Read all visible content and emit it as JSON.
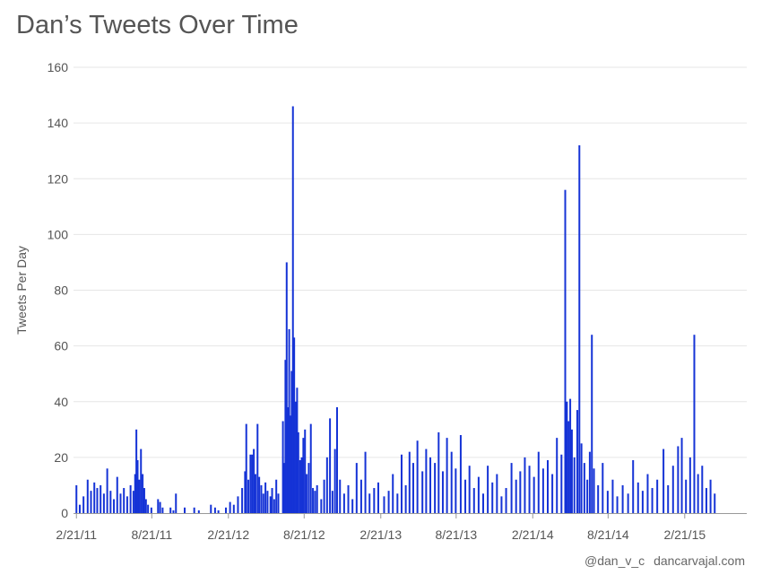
{
  "title": "Dan’s Tweets Over Time",
  "credit": {
    "handle": "@dan_v_c",
    "site": "dancarvajal.com"
  },
  "colors": {
    "bar": "#1533d6",
    "grid": "#e6e6e6",
    "axis": "#999999",
    "text": "#555555"
  },
  "chart_data": {
    "type": "bar",
    "title": "Dan’s Tweets Over Time",
    "xlabel": "",
    "ylabel": "Tweets Per Day",
    "ylim": [
      0,
      160
    ],
    "yticks": [
      "0",
      "20",
      "40",
      "60",
      "80",
      "100",
      "120",
      "140",
      "160"
    ],
    "xlim": [
      "2011-02-14",
      "2015-07-20"
    ],
    "xticks": [
      {
        "date": "2011-02-21",
        "label": "2/21/11"
      },
      {
        "date": "2011-08-21",
        "label": "8/21/11"
      },
      {
        "date": "2012-02-21",
        "label": "2/21/12"
      },
      {
        "date": "2012-08-21",
        "label": "8/21/12"
      },
      {
        "date": "2013-02-21",
        "label": "2/21/13"
      },
      {
        "date": "2013-08-21",
        "label": "8/21/13"
      },
      {
        "date": "2014-02-21",
        "label": "2/21/14"
      },
      {
        "date": "2014-08-21",
        "label": "8/21/14"
      },
      {
        "date": "2015-02-21",
        "label": "2/21/15"
      }
    ],
    "grid": true,
    "legend": "none",
    "series": [
      {
        "points": [
          [
            "2011-02-21",
            10
          ],
          [
            "2011-03-01",
            3
          ],
          [
            "2011-03-10",
            6
          ],
          [
            "2011-03-20",
            12
          ],
          [
            "2011-03-28",
            8
          ],
          [
            "2011-04-05",
            11
          ],
          [
            "2011-04-12",
            9
          ],
          [
            "2011-04-20",
            10
          ],
          [
            "2011-04-28",
            7
          ],
          [
            "2011-05-06",
            16
          ],
          [
            "2011-05-14",
            8
          ],
          [
            "2011-05-22",
            5
          ],
          [
            "2011-05-30",
            13
          ],
          [
            "2011-06-07",
            7
          ],
          [
            "2011-06-15",
            9
          ],
          [
            "2011-06-23",
            6
          ],
          [
            "2011-07-01",
            10
          ],
          [
            "2011-07-08",
            8
          ],
          [
            "2011-07-12",
            14
          ],
          [
            "2011-07-15",
            30
          ],
          [
            "2011-07-18",
            19
          ],
          [
            "2011-07-22",
            12
          ],
          [
            "2011-07-26",
            23
          ],
          [
            "2011-07-30",
            14
          ],
          [
            "2011-08-03",
            9
          ],
          [
            "2011-08-07",
            5
          ],
          [
            "2011-08-12",
            3
          ],
          [
            "2011-08-20",
            2
          ],
          [
            "2011-09-05",
            5
          ],
          [
            "2011-09-10",
            4
          ],
          [
            "2011-09-16",
            2
          ],
          [
            "2011-10-05",
            2
          ],
          [
            "2011-10-12",
            1
          ],
          [
            "2011-10-18",
            7
          ],
          [
            "2011-11-08",
            2
          ],
          [
            "2011-12-01",
            2
          ],
          [
            "2011-12-12",
            1
          ],
          [
            "2012-01-10",
            3
          ],
          [
            "2012-01-20",
            2
          ],
          [
            "2012-01-28",
            1
          ],
          [
            "2012-02-15",
            2
          ],
          [
            "2012-02-25",
            4
          ],
          [
            "2012-03-05",
            3
          ],
          [
            "2012-03-15",
            6
          ],
          [
            "2012-03-25",
            9
          ],
          [
            "2012-04-01",
            15
          ],
          [
            "2012-04-04",
            32
          ],
          [
            "2012-04-09",
            12
          ],
          [
            "2012-04-14",
            21
          ],
          [
            "2012-04-18",
            21
          ],
          [
            "2012-04-22",
            23
          ],
          [
            "2012-04-26",
            14
          ],
          [
            "2012-05-01",
            32
          ],
          [
            "2012-05-05",
            13
          ],
          [
            "2012-05-10",
            10
          ],
          [
            "2012-05-15",
            7
          ],
          [
            "2012-05-20",
            11
          ],
          [
            "2012-05-25",
            8
          ],
          [
            "2012-06-01",
            6
          ],
          [
            "2012-06-05",
            9
          ],
          [
            "2012-06-10",
            5
          ],
          [
            "2012-06-15",
            12
          ],
          [
            "2012-06-20",
            7
          ],
          [
            "2012-07-01",
            33
          ],
          [
            "2012-07-04",
            18
          ],
          [
            "2012-07-07",
            55
          ],
          [
            "2012-07-10",
            90
          ],
          [
            "2012-07-13",
            38
          ],
          [
            "2012-07-16",
            66
          ],
          [
            "2012-07-19",
            35
          ],
          [
            "2012-07-22",
            51
          ],
          [
            "2012-07-25",
            146
          ],
          [
            "2012-07-28",
            63
          ],
          [
            "2012-08-01",
            40
          ],
          [
            "2012-08-04",
            45
          ],
          [
            "2012-08-07",
            29
          ],
          [
            "2012-08-11",
            19
          ],
          [
            "2012-08-15",
            20
          ],
          [
            "2012-08-19",
            27
          ],
          [
            "2012-08-23",
            30
          ],
          [
            "2012-08-27",
            14
          ],
          [
            "2012-09-01",
            18
          ],
          [
            "2012-09-06",
            32
          ],
          [
            "2012-09-11",
            9
          ],
          [
            "2012-09-16",
            8
          ],
          [
            "2012-09-21",
            10
          ],
          [
            "2012-10-01",
            5
          ],
          [
            "2012-10-08",
            12
          ],
          [
            "2012-10-15",
            20
          ],
          [
            "2012-10-22",
            34
          ],
          [
            "2012-10-28",
            8
          ],
          [
            "2012-11-03",
            23
          ],
          [
            "2012-11-08",
            38
          ],
          [
            "2012-11-15",
            12
          ],
          [
            "2012-11-25",
            7
          ],
          [
            "2012-12-05",
            10
          ],
          [
            "2012-12-15",
            5
          ],
          [
            "2012-12-25",
            18
          ],
          [
            "2013-01-05",
            12
          ],
          [
            "2013-01-15",
            22
          ],
          [
            "2013-01-25",
            7
          ],
          [
            "2013-02-05",
            9
          ],
          [
            "2013-02-15",
            11
          ],
          [
            "2013-03-01",
            6
          ],
          [
            "2013-03-12",
            8
          ],
          [
            "2013-03-22",
            14
          ],
          [
            "2013-04-02",
            7
          ],
          [
            "2013-04-12",
            21
          ],
          [
            "2013-04-22",
            10
          ],
          [
            "2013-05-01",
            22
          ],
          [
            "2013-05-10",
            18
          ],
          [
            "2013-05-20",
            26
          ],
          [
            "2013-06-01",
            15
          ],
          [
            "2013-06-10",
            23
          ],
          [
            "2013-06-20",
            20
          ],
          [
            "2013-07-01",
            18
          ],
          [
            "2013-07-10",
            29
          ],
          [
            "2013-07-20",
            15
          ],
          [
            "2013-07-30",
            27
          ],
          [
            "2013-08-10",
            22
          ],
          [
            "2013-08-20",
            16
          ],
          [
            "2013-09-01",
            28
          ],
          [
            "2013-09-12",
            12
          ],
          [
            "2013-09-22",
            17
          ],
          [
            "2013-10-03",
            9
          ],
          [
            "2013-10-14",
            13
          ],
          [
            "2013-10-25",
            7
          ],
          [
            "2013-11-05",
            17
          ],
          [
            "2013-11-16",
            11
          ],
          [
            "2013-11-27",
            14
          ],
          [
            "2013-12-08",
            6
          ],
          [
            "2013-12-19",
            9
          ],
          [
            "2014-01-01",
            18
          ],
          [
            "2014-01-12",
            12
          ],
          [
            "2014-01-22",
            15
          ],
          [
            "2014-02-02",
            20
          ],
          [
            "2014-02-13",
            17
          ],
          [
            "2014-02-24",
            13
          ],
          [
            "2014-03-07",
            22
          ],
          [
            "2014-03-18",
            16
          ],
          [
            "2014-03-29",
            19
          ],
          [
            "2014-04-09",
            14
          ],
          [
            "2014-04-20",
            27
          ],
          [
            "2014-05-01",
            21
          ],
          [
            "2014-05-10",
            116
          ],
          [
            "2014-05-14",
            40
          ],
          [
            "2014-05-18",
            33
          ],
          [
            "2014-05-22",
            41
          ],
          [
            "2014-05-26",
            30
          ],
          [
            "2014-06-01",
            20
          ],
          [
            "2014-06-08",
            37
          ],
          [
            "2014-06-13",
            132
          ],
          [
            "2014-06-18",
            25
          ],
          [
            "2014-06-25",
            18
          ],
          [
            "2014-07-02",
            12
          ],
          [
            "2014-07-08",
            22
          ],
          [
            "2014-07-13",
            64
          ],
          [
            "2014-07-18",
            16
          ],
          [
            "2014-07-28",
            10
          ],
          [
            "2014-08-08",
            18
          ],
          [
            "2014-08-20",
            8
          ],
          [
            "2014-09-01",
            12
          ],
          [
            "2014-09-12",
            6
          ],
          [
            "2014-09-25",
            10
          ],
          [
            "2014-10-08",
            7
          ],
          [
            "2014-10-20",
            19
          ],
          [
            "2014-11-01",
            11
          ],
          [
            "2014-11-12",
            8
          ],
          [
            "2014-11-24",
            14
          ],
          [
            "2014-12-05",
            9
          ],
          [
            "2014-12-17",
            12
          ],
          [
            "2015-01-01",
            23
          ],
          [
            "2015-01-12",
            10
          ],
          [
            "2015-01-24",
            17
          ],
          [
            "2015-02-05",
            24
          ],
          [
            "2015-02-14",
            27
          ],
          [
            "2015-02-24",
            12
          ],
          [
            "2015-03-06",
            20
          ],
          [
            "2015-03-16",
            64
          ],
          [
            "2015-03-25",
            14
          ],
          [
            "2015-04-04",
            17
          ],
          [
            "2015-04-14",
            9
          ],
          [
            "2015-04-24",
            12
          ],
          [
            "2015-05-04",
            7
          ]
        ]
      }
    ]
  }
}
